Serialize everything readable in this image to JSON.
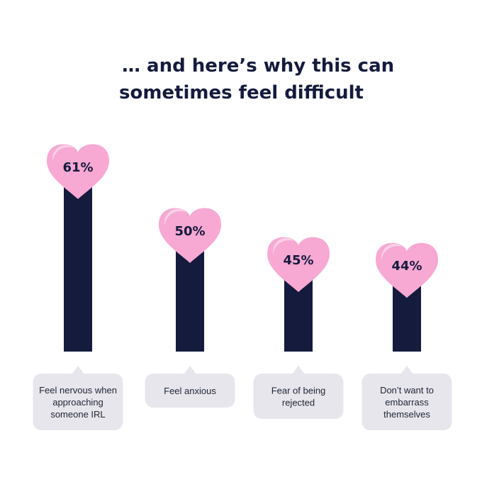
{
  "title_lines": [
    "… and here’s why this can",
    "sometimes feel difficult"
  ],
  "colors": {
    "bar": "#141b3d",
    "heart": "#f7a8d3",
    "heart_highlight": "#fbd0e6",
    "bubble": "#e7e6ec",
    "text": "#141b3d"
  },
  "chart_data": {
    "type": "bar",
    "title": "… and here’s why this can sometimes feel difficult",
    "categories": [
      "Feel nervous when approaching someone IRL",
      "Feel anxious",
      "Fear of being rejected",
      "Don’t want to embarrass themselves"
    ],
    "category_lines": [
      [
        "Feel nervous when",
        "approaching",
        "someone IRL"
      ],
      [
        "Feel anxious"
      ],
      [
        "Fear of being",
        "rejected"
      ],
      [
        "Don’t want to",
        "embarrass",
        "themselves"
      ]
    ],
    "values": [
      61,
      50,
      45,
      44
    ],
    "data_labels": [
      "61%",
      "50%",
      "45%",
      "44%"
    ],
    "unit": "%",
    "grid": false,
    "legend": "none"
  }
}
